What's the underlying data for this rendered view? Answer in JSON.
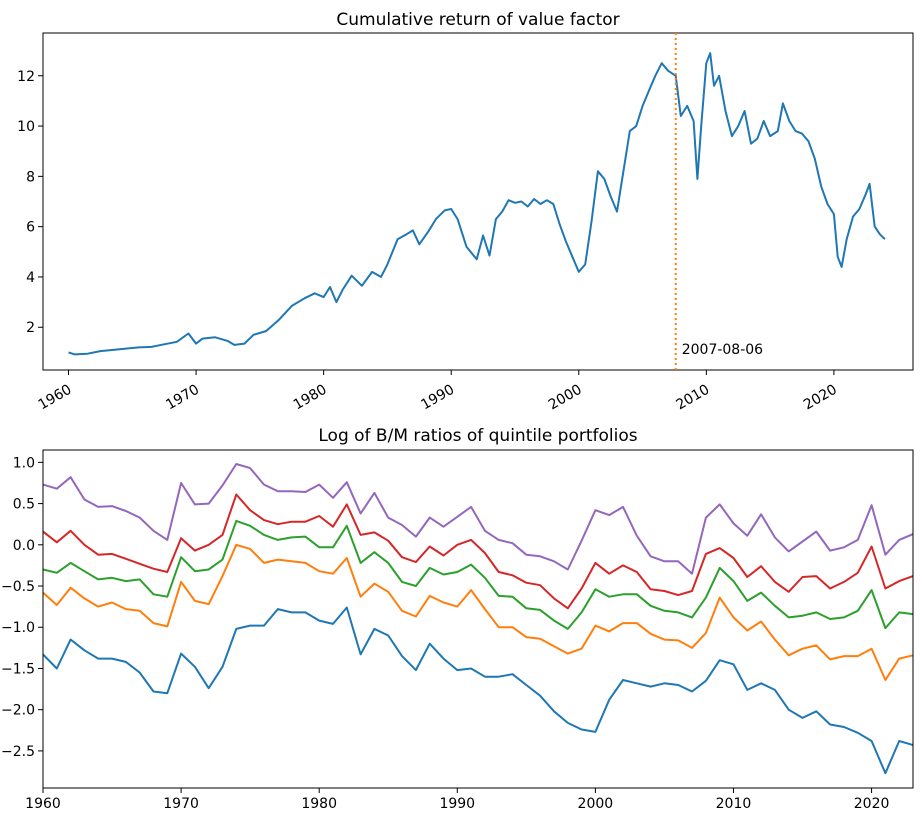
{
  "chart_data": [
    {
      "type": "line",
      "title": "Cumulative return of value factor",
      "xlabel": "",
      "ylabel": "",
      "xlim": [
        1958.0,
        2026.2
      ],
      "ylim": [
        0.3,
        13.7
      ],
      "xticks": [
        1960,
        1970,
        1980,
        1990,
        2000,
        2010,
        2020
      ],
      "xtick_labels": [
        "1960",
        "1970",
        "1980",
        "1990",
        "2000",
        "2010",
        "2020"
      ],
      "yticks": [
        2,
        4,
        6,
        8,
        10,
        12
      ],
      "ytick_labels": [
        "2",
        "4",
        "6",
        "8",
        "10",
        "12"
      ],
      "grid": false,
      "vline": {
        "x": 2007.6,
        "label": "2007-08-06",
        "color": "#ff7f0e",
        "style": "dotted"
      },
      "series": [
        {
          "color": "#1f77b4",
          "points": [
            [
              1960.0,
              1.0
            ],
            [
              1960.5,
              0.92
            ],
            [
              1961.5,
              0.95
            ],
            [
              1962.5,
              1.05
            ],
            [
              1963.5,
              1.1
            ],
            [
              1964.5,
              1.15
            ],
            [
              1965.5,
              1.2
            ],
            [
              1966.5,
              1.22
            ],
            [
              1967.5,
              1.32
            ],
            [
              1968.5,
              1.42
            ],
            [
              1969.4,
              1.75
            ],
            [
              1970.0,
              1.35
            ],
            [
              1970.5,
              1.55
            ],
            [
              1971.5,
              1.6
            ],
            [
              1972.5,
              1.45
            ],
            [
              1973.0,
              1.3
            ],
            [
              1973.8,
              1.35
            ],
            [
              1974.5,
              1.7
            ],
            [
              1975.5,
              1.85
            ],
            [
              1976.5,
              2.3
            ],
            [
              1977.5,
              2.85
            ],
            [
              1978.5,
              3.15
            ],
            [
              1979.3,
              3.35
            ],
            [
              1980.0,
              3.2
            ],
            [
              1980.5,
              3.6
            ],
            [
              1981.0,
              3.0
            ],
            [
              1981.5,
              3.5
            ],
            [
              1982.2,
              4.05
            ],
            [
              1983.0,
              3.65
            ],
            [
              1983.8,
              4.2
            ],
            [
              1984.5,
              4.0
            ],
            [
              1985.0,
              4.5
            ],
            [
              1985.8,
              5.5
            ],
            [
              1986.5,
              5.7
            ],
            [
              1987.0,
              5.85
            ],
            [
              1987.5,
              5.3
            ],
            [
              1988.2,
              5.8
            ],
            [
              1988.8,
              6.3
            ],
            [
              1989.5,
              6.65
            ],
            [
              1990.0,
              6.7
            ],
            [
              1990.5,
              6.3
            ],
            [
              1991.2,
              5.2
            ],
            [
              1992.0,
              4.7
            ],
            [
              1992.5,
              5.65
            ],
            [
              1993.0,
              4.85
            ],
            [
              1993.5,
              6.3
            ],
            [
              1994.0,
              6.6
            ],
            [
              1994.5,
              7.05
            ],
            [
              1995.0,
              6.95
            ],
            [
              1995.5,
              7.0
            ],
            [
              1996.0,
              6.8
            ],
            [
              1996.5,
              7.1
            ],
            [
              1997.0,
              6.9
            ],
            [
              1997.5,
              7.05
            ],
            [
              1998.0,
              6.9
            ],
            [
              1998.5,
              6.1
            ],
            [
              1999.0,
              5.4
            ],
            [
              1999.5,
              4.8
            ],
            [
              2000.0,
              4.2
            ],
            [
              2000.5,
              4.5
            ],
            [
              2001.0,
              6.2
            ],
            [
              2001.5,
              8.2
            ],
            [
              2002.0,
              7.9
            ],
            [
              2002.5,
              7.2
            ],
            [
              2003.0,
              6.6
            ],
            [
              2003.5,
              8.2
            ],
            [
              2004.0,
              9.8
            ],
            [
              2004.5,
              10.0
            ],
            [
              2005.0,
              10.8
            ],
            [
              2005.5,
              11.4
            ],
            [
              2006.0,
              12.0
            ],
            [
              2006.5,
              12.5
            ],
            [
              2007.0,
              12.2
            ],
            [
              2007.6,
              12.0
            ],
            [
              2008.0,
              10.4
            ],
            [
              2008.5,
              10.8
            ],
            [
              2009.0,
              10.2
            ],
            [
              2009.3,
              7.9
            ],
            [
              2009.6,
              10.0
            ],
            [
              2010.0,
              12.5
            ],
            [
              2010.3,
              12.9
            ],
            [
              2010.6,
              11.6
            ],
            [
              2011.0,
              12.0
            ],
            [
              2011.5,
              10.6
            ],
            [
              2012.0,
              9.6
            ],
            [
              2012.5,
              10.0
            ],
            [
              2013.0,
              10.6
            ],
            [
              2013.5,
              9.3
            ],
            [
              2014.0,
              9.5
            ],
            [
              2014.5,
              10.2
            ],
            [
              2015.0,
              9.6
            ],
            [
              2015.6,
              9.8
            ],
            [
              2016.0,
              10.9
            ],
            [
              2016.5,
              10.2
            ],
            [
              2017.0,
              9.8
            ],
            [
              2017.5,
              9.7
            ],
            [
              2018.0,
              9.4
            ],
            [
              2018.5,
              8.7
            ],
            [
              2019.0,
              7.6
            ],
            [
              2019.5,
              6.9
            ],
            [
              2020.0,
              6.5
            ],
            [
              2020.3,
              4.8
            ],
            [
              2020.6,
              4.4
            ],
            [
              2021.0,
              5.5
            ],
            [
              2021.5,
              6.4
            ],
            [
              2022.0,
              6.7
            ],
            [
              2022.5,
              7.3
            ],
            [
              2022.8,
              7.7
            ],
            [
              2023.2,
              6.0
            ],
            [
              2023.6,
              5.7
            ],
            [
              2024.0,
              5.5
            ]
          ]
        }
      ]
    },
    {
      "type": "line",
      "title": "Log of B/M ratios of quintile portfolios",
      "xlabel": "",
      "ylabel": "",
      "xlim": [
        1960,
        2023
      ],
      "ylim": [
        -2.95,
        1.15
      ],
      "xticks": [
        1960,
        1970,
        1980,
        1990,
        2000,
        2010,
        2020
      ],
      "xtick_labels": [
        "1960",
        "1970",
        "1980",
        "1990",
        "2000",
        "2010",
        "2020"
      ],
      "yticks": [
        1.0,
        0.5,
        0.0,
        -0.5,
        -1.0,
        -1.5,
        -2.0,
        -2.5
      ],
      "ytick_labels": [
        "1.0",
        "0.5",
        "0.0",
        "−0.5",
        "−1.0",
        "−1.5",
        "−2.0",
        "−2.5"
      ],
      "grid": false,
      "x": [
        1960,
        1961,
        1962,
        1963,
        1964,
        1965,
        1966,
        1967,
        1968,
        1969,
        1970,
        1971,
        1972,
        1973,
        1974,
        1975,
        1976,
        1977,
        1978,
        1979,
        1980,
        1981,
        1982,
        1983,
        1984,
        1985,
        1986,
        1987,
        1988,
        1989,
        1990,
        1991,
        1992,
        1993,
        1994,
        1995,
        1996,
        1997,
        1998,
        1999,
        2000,
        2001,
        2002,
        2003,
        2004,
        2005,
        2006,
        2007,
        2008,
        2009,
        2010,
        2011,
        2012,
        2013,
        2014,
        2015,
        2016,
        2017,
        2018,
        2019,
        2020,
        2021,
        2022,
        2023
      ],
      "series": [
        {
          "color": "#1f77b4",
          "values": [
            -1.33,
            -1.5,
            -1.15,
            -1.28,
            -1.38,
            -1.38,
            -1.42,
            -1.55,
            -1.78,
            -1.8,
            -1.32,
            -1.48,
            -1.74,
            -1.48,
            -1.02,
            -0.98,
            -0.98,
            -0.78,
            -0.82,
            -0.82,
            -0.92,
            -0.96,
            -0.76,
            -1.33,
            -1.02,
            -1.1,
            -1.35,
            -1.52,
            -1.2,
            -1.38,
            -1.52,
            -1.5,
            -1.6,
            -1.6,
            -1.57,
            -1.7,
            -1.83,
            -2.02,
            -2.16,
            -2.24,
            -2.27,
            -1.88,
            -1.64,
            -1.68,
            -1.72,
            -1.68,
            -1.7,
            -1.78,
            -1.65,
            -1.4,
            -1.45,
            -1.76,
            -1.68,
            -1.76,
            -2.0,
            -2.1,
            -2.02,
            -2.18,
            -2.21,
            -2.28,
            -2.38,
            -2.77,
            -2.38,
            -2.43
          ]
        },
        {
          "color": "#ff7f0e",
          "values": [
            -0.58,
            -0.73,
            -0.52,
            -0.65,
            -0.75,
            -0.7,
            -0.78,
            -0.8,
            -0.95,
            -0.99,
            -0.45,
            -0.68,
            -0.72,
            -0.38,
            0.0,
            -0.05,
            -0.22,
            -0.18,
            -0.2,
            -0.22,
            -0.32,
            -0.35,
            -0.16,
            -0.63,
            -0.47,
            -0.57,
            -0.8,
            -0.87,
            -0.62,
            -0.7,
            -0.75,
            -0.55,
            -0.78,
            -1.0,
            -1.0,
            -1.12,
            -1.14,
            -1.23,
            -1.32,
            -1.26,
            -0.98,
            -1.05,
            -0.95,
            -0.95,
            -1.08,
            -1.15,
            -1.16,
            -1.25,
            -1.07,
            -0.64,
            -0.88,
            -1.04,
            -0.93,
            -1.15,
            -1.34,
            -1.26,
            -1.22,
            -1.39,
            -1.35,
            -1.35,
            -1.26,
            -1.64,
            -1.38,
            -1.34
          ]
        },
        {
          "color": "#2ca02c",
          "values": [
            -0.3,
            -0.34,
            -0.22,
            -0.32,
            -0.42,
            -0.4,
            -0.44,
            -0.42,
            -0.6,
            -0.63,
            -0.15,
            -0.32,
            -0.3,
            -0.18,
            0.29,
            0.23,
            0.12,
            0.06,
            0.09,
            0.1,
            -0.03,
            -0.03,
            0.23,
            -0.22,
            -0.09,
            -0.22,
            -0.45,
            -0.5,
            -0.28,
            -0.36,
            -0.33,
            -0.24,
            -0.4,
            -0.62,
            -0.63,
            -0.77,
            -0.79,
            -0.92,
            -1.02,
            -0.82,
            -0.54,
            -0.63,
            -0.6,
            -0.6,
            -0.74,
            -0.8,
            -0.82,
            -0.88,
            -0.64,
            -0.28,
            -0.44,
            -0.68,
            -0.58,
            -0.74,
            -0.88,
            -0.86,
            -0.82,
            -0.9,
            -0.88,
            -0.8,
            -0.55,
            -1.01,
            -0.82,
            -0.84
          ]
        },
        {
          "color": "#d62728",
          "values": [
            0.16,
            0.03,
            0.17,
            0.0,
            -0.12,
            -0.11,
            -0.17,
            -0.23,
            -0.29,
            -0.33,
            0.08,
            -0.07,
            0.0,
            0.12,
            0.61,
            0.42,
            0.3,
            0.25,
            0.28,
            0.28,
            0.35,
            0.22,
            0.49,
            0.12,
            0.15,
            0.05,
            -0.15,
            -0.21,
            -0.02,
            -0.13,
            0.0,
            0.06,
            -0.1,
            -0.33,
            -0.37,
            -0.46,
            -0.49,
            -0.65,
            -0.77,
            -0.53,
            -0.22,
            -0.35,
            -0.25,
            -0.33,
            -0.54,
            -0.56,
            -0.61,
            -0.56,
            -0.11,
            -0.04,
            -0.16,
            -0.39,
            -0.26,
            -0.45,
            -0.57,
            -0.39,
            -0.38,
            -0.53,
            -0.45,
            -0.34,
            -0.02,
            -0.53,
            -0.44,
            -0.38
          ]
        },
        {
          "color": "#9467bd",
          "values": [
            0.73,
            0.68,
            0.82,
            0.55,
            0.46,
            0.47,
            0.41,
            0.33,
            0.17,
            0.06,
            0.75,
            0.49,
            0.5,
            0.72,
            0.98,
            0.93,
            0.73,
            0.65,
            0.65,
            0.64,
            0.73,
            0.57,
            0.76,
            0.38,
            0.63,
            0.33,
            0.24,
            0.1,
            0.33,
            0.22,
            0.34,
            0.46,
            0.17,
            0.06,
            0.02,
            -0.12,
            -0.14,
            -0.2,
            -0.3,
            0.05,
            0.42,
            0.36,
            0.46,
            0.11,
            -0.14,
            -0.2,
            -0.2,
            -0.35,
            0.33,
            0.49,
            0.26,
            0.11,
            0.37,
            0.09,
            -0.08,
            0.04,
            0.16,
            -0.07,
            -0.03,
            0.06,
            0.48,
            -0.12,
            0.06,
            0.13
          ]
        }
      ]
    }
  ]
}
